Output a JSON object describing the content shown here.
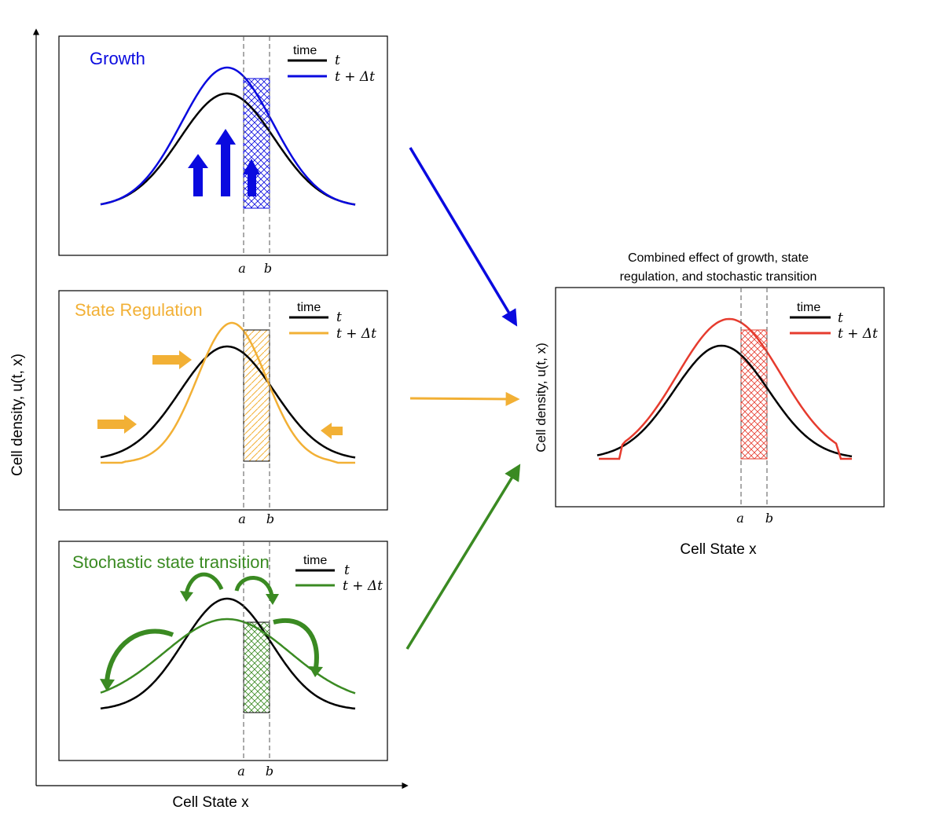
{
  "colors": {
    "growth": "#0a0adf",
    "regulation": "#f2b035",
    "stochastic": "#3a8a22",
    "combined": "#e63b2e",
    "base": "#000000"
  },
  "global_axes": {
    "y_label": "Cell density, u(t, x)",
    "x_label": "Cell State x"
  },
  "panels": {
    "growth": {
      "title": "Growth",
      "legend": {
        "header": "time",
        "t": "t",
        "t_dt": "t + Δt"
      },
      "a": "a",
      "b": "b",
      "icons": [
        "up-arrow-icon",
        "up-arrow-icon",
        "up-arrow-icon"
      ]
    },
    "regulation": {
      "title": "State Regulation",
      "legend": {
        "header": "time",
        "t": "t",
        "t_dt": "t + Δt"
      },
      "a": "a",
      "b": "b",
      "icons": [
        "right-arrow-icon",
        "right-arrow-icon",
        "left-arrow-icon"
      ]
    },
    "stochastic": {
      "title": "Stochastic state transition",
      "legend": {
        "header": "time",
        "t": "t",
        "t_dt": "t + Δt"
      },
      "a": "a",
      "b": "b",
      "icons": [
        "curved-arrow-icon",
        "curved-arrow-icon",
        "curved-arrow-icon",
        "curved-arrow-icon"
      ]
    },
    "combined": {
      "caption_line1": "Combined effect of growth, state",
      "caption_line2": "regulation, and stochastic transition",
      "legend": {
        "header": "time",
        "t": "t",
        "t_dt": "t + Δt"
      },
      "a": "a",
      "b": "b",
      "y_label": "Cell density, u(t, x)",
      "x_label": "Cell State x"
    }
  }
}
